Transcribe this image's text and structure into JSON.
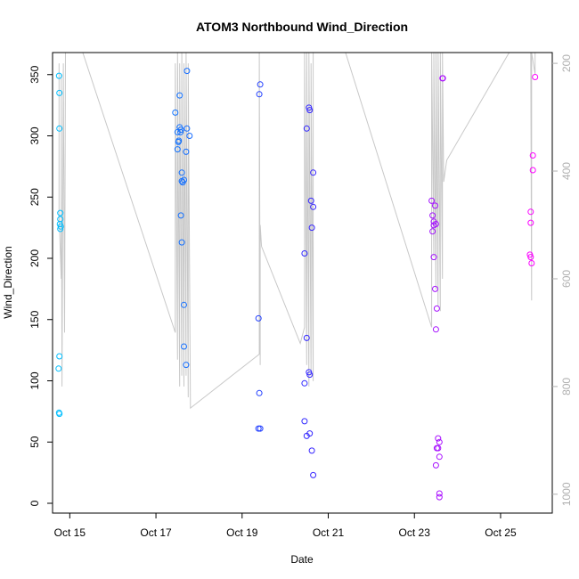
{
  "chart_data": {
    "type": "scatter",
    "title": "ATOM3 Northbound Wind_Direction",
    "xlabel": "Date",
    "ylabel": "Wind_Direction",
    "x_ticks": [
      "Oct 15",
      "Oct 17",
      "Oct 19",
      "Oct 21",
      "Oct 23",
      "Oct 25"
    ],
    "x_tick_days": [
      15,
      17,
      19,
      21,
      23,
      25
    ],
    "xlim": [
      14.6,
      26.2
    ],
    "ylim": [
      -8,
      368
    ],
    "y_ticks": [
      0,
      50,
      100,
      150,
      200,
      250,
      300,
      350
    ],
    "y2_ticks": [
      200,
      400,
      600,
      800,
      1000
    ],
    "y2lim": [
      1035,
      180
    ],
    "color_start": "#00bfff",
    "color_end": "#ff00ff",
    "line_color": "#c8c8c8",
    "points": [
      [
        14.75,
        349
      ],
      [
        14.76,
        335
      ],
      [
        14.76,
        306
      ],
      [
        14.78,
        237
      ],
      [
        14.78,
        232
      ],
      [
        14.77,
        228
      ],
      [
        14.79,
        226
      ],
      [
        14.78,
        224
      ],
      [
        14.76,
        120
      ],
      [
        14.74,
        110
      ],
      [
        14.75,
        74
      ],
      [
        14.76,
        73
      ],
      [
        17.45,
        319
      ],
      [
        17.5,
        303
      ],
      [
        17.5,
        289
      ],
      [
        17.55,
        333
      ],
      [
        17.55,
        307
      ],
      [
        17.53,
        296
      ],
      [
        17.52,
        295
      ],
      [
        17.58,
        305
      ],
      [
        17.57,
        303
      ],
      [
        17.6,
        270
      ],
      [
        17.6,
        263
      ],
      [
        17.62,
        262
      ],
      [
        17.58,
        235
      ],
      [
        17.6,
        213
      ],
      [
        17.65,
        162
      ],
      [
        17.65,
        128
      ],
      [
        17.7,
        113
      ],
      [
        17.72,
        353
      ],
      [
        17.72,
        306
      ],
      [
        17.7,
        287
      ],
      [
        17.78,
        300
      ],
      [
        17.65,
        264
      ],
      [
        19.4,
        334
      ],
      [
        19.42,
        342
      ],
      [
        19.38,
        151
      ],
      [
        19.4,
        90
      ],
      [
        19.38,
        61
      ],
      [
        19.42,
        61
      ],
      [
        20.45,
        204
      ],
      [
        20.45,
        98
      ],
      [
        20.45,
        67
      ],
      [
        20.5,
        306
      ],
      [
        20.5,
        135
      ],
      [
        20.5,
        55
      ],
      [
        20.55,
        323
      ],
      [
        20.57,
        321
      ],
      [
        20.55,
        107
      ],
      [
        20.57,
        105
      ],
      [
        20.57,
        57
      ],
      [
        20.6,
        247
      ],
      [
        20.62,
        225
      ],
      [
        20.65,
        270
      ],
      [
        20.65,
        242
      ],
      [
        20.62,
        43
      ],
      [
        20.65,
        23
      ],
      [
        23.4,
        247
      ],
      [
        23.42,
        235
      ],
      [
        23.45,
        230
      ],
      [
        23.45,
        227
      ],
      [
        23.42,
        222
      ],
      [
        23.48,
        243
      ],
      [
        23.5,
        228
      ],
      [
        23.45,
        201
      ],
      [
        23.48,
        175
      ],
      [
        23.52,
        159
      ],
      [
        23.5,
        142
      ],
      [
        23.55,
        53
      ],
      [
        23.58,
        50
      ],
      [
        23.52,
        45
      ],
      [
        23.55,
        45
      ],
      [
        23.58,
        38
      ],
      [
        23.5,
        31
      ],
      [
        23.58,
        8
      ],
      [
        23.58,
        5
      ],
      [
        23.65,
        347
      ],
      [
        23.66,
        347
      ],
      [
        25.7,
        238
      ],
      [
        25.7,
        229
      ],
      [
        25.68,
        203
      ],
      [
        25.7,
        201
      ],
      [
        25.72,
        196
      ],
      [
        25.75,
        284
      ],
      [
        25.75,
        272
      ],
      [
        25.8,
        348
      ]
    ],
    "secondary_line": [
      [
        14.75,
        200
      ],
      [
        14.75,
        480
      ],
      [
        14.8,
        600
      ],
      [
        14.8,
        220
      ],
      [
        14.82,
        800
      ],
      [
        14.85,
        200
      ],
      [
        14.88,
        700
      ],
      [
        14.9,
        180
      ],
      [
        15.3,
        180
      ],
      [
        17.45,
        700
      ],
      [
        17.45,
        200
      ],
      [
        17.5,
        750
      ],
      [
        17.5,
        180
      ],
      [
        17.55,
        800
      ],
      [
        17.55,
        200
      ],
      [
        17.6,
        780
      ],
      [
        17.6,
        180
      ],
      [
        17.65,
        800
      ],
      [
        17.65,
        200
      ],
      [
        17.7,
        780
      ],
      [
        17.7,
        180
      ],
      [
        17.75,
        820
      ],
      [
        17.75,
        200
      ],
      [
        17.8,
        840
      ],
      [
        19.4,
        740
      ],
      [
        19.4,
        180
      ],
      [
        19.42,
        760
      ],
      [
        19.42,
        500
      ],
      [
        19.45,
        540
      ],
      [
        20.35,
        720
      ],
      [
        20.45,
        690
      ],
      [
        20.45,
        180
      ],
      [
        20.5,
        760
      ],
      [
        20.5,
        180
      ],
      [
        20.55,
        800
      ],
      [
        20.55,
        180
      ],
      [
        20.6,
        780
      ],
      [
        20.6,
        200
      ],
      [
        20.65,
        790
      ],
      [
        20.65,
        180
      ],
      [
        21.4,
        180
      ],
      [
        23.4,
        690
      ],
      [
        23.4,
        180
      ],
      [
        23.45,
        560
      ],
      [
        23.45,
        180
      ],
      [
        23.5,
        620
      ],
      [
        23.5,
        180
      ],
      [
        23.55,
        650
      ],
      [
        23.55,
        180
      ],
      [
        23.6,
        660
      ],
      [
        23.6,
        180
      ],
      [
        23.65,
        600
      ],
      [
        23.65,
        180
      ],
      [
        23.68,
        420
      ],
      [
        23.75,
        380
      ],
      [
        25.2,
        180
      ],
      [
        25.7,
        180
      ],
      [
        25.72,
        640
      ],
      [
        25.72,
        180
      ],
      [
        25.8,
        220
      ],
      [
        25.8,
        180
      ]
    ]
  }
}
